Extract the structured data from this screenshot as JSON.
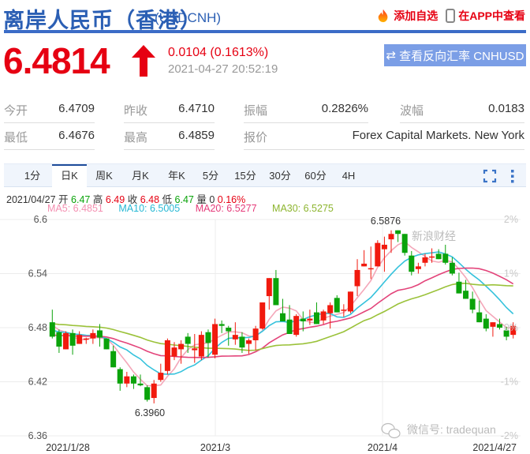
{
  "header": {
    "title": "离岸人民币（香港）",
    "symbol": "(USDCNH)",
    "add_watchlist": "添加自选",
    "view_in_app": "在APP中查看"
  },
  "quote": {
    "last_price": "6.4814",
    "direction": "up",
    "change": "0.0104 (0.1613%)",
    "timestamp": "2021-04-27 20:52:19",
    "reverse_button": "查看反向汇率 CNHUSD",
    "up_color": "#e60012"
  },
  "stats": {
    "row1": [
      {
        "label": "今开",
        "value": "6.4709"
      },
      {
        "label": "昨收",
        "value": "6.4710"
      },
      {
        "label": "振幅",
        "value": "0.2826%"
      },
      {
        "label": "波幅",
        "value": "0.0183"
      }
    ],
    "row2": [
      {
        "label": "最低",
        "value": "6.4676"
      },
      {
        "label": "最高",
        "value": "6.4859"
      },
      {
        "label": "报价",
        "value": "Forex Capital Markets. New York"
      }
    ]
  },
  "tabs": [
    {
      "label": "1分"
    },
    {
      "label": "日K",
      "active": true
    },
    {
      "label": "周K"
    },
    {
      "label": "月K"
    },
    {
      "label": "年K"
    },
    {
      "label": "5分"
    },
    {
      "label": "15分"
    },
    {
      "label": "30分"
    },
    {
      "label": "60分"
    },
    {
      "label": "4H"
    }
  ],
  "toolbar_icons": [
    "fullscreen-icon",
    "more-vertical-icon"
  ],
  "ohlc_info": {
    "date": "2021/04/27",
    "open_label": "开",
    "open": "6.47",
    "high_label": "高",
    "high": "6.49",
    "close_label": "收",
    "close": "6.48",
    "low_label": "低",
    "low": "6.47",
    "volume_label": "量",
    "volume": "0",
    "change_pct": "0.16%"
  },
  "ma_info": [
    {
      "label": "MA5: 6.4851",
      "color": "#f48fb1"
    },
    {
      "label": "MA10: 6.5005",
      "color": "#26c6da"
    },
    {
      "label": "MA20: 6.5277",
      "color": "#e91e63"
    },
    {
      "label": "MA30: 6.5275",
      "color": "#8bc34a"
    }
  ],
  "watermarks": {
    "sina": "新浪财经",
    "wechat": "微信号: tradequan"
  },
  "chart_data": {
    "type": "candlestick",
    "title": "USDCNH 日K",
    "xlabel": "",
    "ylabel": "",
    "ylim": [
      6.36,
      6.6
    ],
    "y_ticks": [
      "6.6",
      "6.54",
      "6.48",
      "6.42",
      "6.36"
    ],
    "y2_ticks": [
      "2%",
      "1%",
      "0%",
      "-1%",
      "-2%"
    ],
    "x_ticks": [
      "2021/1/28",
      "2021/3",
      "2021/4",
      "2021/4/27"
    ],
    "annotations": [
      {
        "text": "6.5876",
        "type": "max"
      },
      {
        "text": "6.3960",
        "type": "min"
      }
    ],
    "grid": true,
    "up_color": "#f11a0e",
    "down_color": "#0aa30a",
    "candles": [
      [
        6.486,
        6.5,
        6.468,
        6.47
      ],
      [
        6.475,
        6.478,
        6.452,
        6.459
      ],
      [
        6.456,
        6.476,
        6.459,
        6.474
      ],
      [
        6.474,
        6.478,
        6.45,
        6.46
      ],
      [
        6.462,
        6.476,
        6.462,
        6.472
      ],
      [
        6.468,
        6.469,
        6.462,
        6.468
      ],
      [
        6.468,
        6.478,
        6.462,
        6.474
      ],
      [
        6.477,
        6.484,
        6.459,
        6.469
      ],
      [
        6.468,
        6.468,
        6.458,
        6.456
      ],
      [
        6.454,
        6.46,
        6.436,
        6.436
      ],
      [
        6.434,
        6.436,
        6.41,
        6.418
      ],
      [
        6.418,
        6.431,
        6.414,
        6.426
      ],
      [
        6.426,
        6.428,
        6.412,
        6.418
      ],
      [
        6.418,
        6.428,
        6.415,
        6.416
      ],
      [
        6.414,
        6.416,
        6.398,
        6.4
      ],
      [
        6.402,
        6.422,
        6.396,
        6.418
      ],
      [
        6.422,
        6.44,
        6.42,
        6.43
      ],
      [
        6.432,
        6.468,
        6.428,
        6.466
      ],
      [
        6.448,
        6.464,
        6.444,
        6.458
      ],
      [
        6.456,
        6.466,
        6.44,
        6.462
      ],
      [
        6.47,
        6.474,
        6.452,
        6.462
      ],
      [
        6.455,
        6.473,
        6.441,
        6.457
      ],
      [
        6.448,
        6.476,
        6.444,
        6.472
      ],
      [
        6.475,
        6.478,
        6.447,
        6.463
      ],
      [
        6.45,
        6.49,
        6.446,
        6.484
      ],
      [
        6.484,
        6.488,
        6.474,
        6.482
      ],
      [
        6.48,
        6.482,
        6.46,
        6.476
      ],
      [
        6.467,
        6.486,
        6.461,
        6.472
      ],
      [
        6.47,
        6.475,
        6.452,
        6.458
      ],
      [
        6.462,
        6.468,
        6.451,
        6.466
      ],
      [
        6.466,
        6.482,
        6.455,
        6.479
      ],
      [
        6.479,
        6.501,
        6.478,
        6.508
      ],
      [
        6.515,
        6.535,
        6.5,
        6.535
      ],
      [
        6.535,
        6.544,
        6.506,
        6.505
      ],
      [
        6.496,
        6.512,
        6.488,
        6.487
      ],
      [
        6.489,
        6.505,
        6.482,
        6.473
      ],
      [
        6.472,
        6.495,
        6.47,
        6.493
      ],
      [
        6.49,
        6.498,
        6.476,
        6.487
      ],
      [
        6.488,
        6.5,
        6.483,
        6.49
      ],
      [
        6.497,
        6.508,
        6.484,
        6.484
      ],
      [
        6.488,
        6.5,
        6.484,
        6.498
      ],
      [
        6.496,
        6.508,
        6.479,
        6.505
      ],
      [
        6.513,
        6.516,
        6.498,
        6.497
      ],
      [
        6.499,
        6.506,
        6.492,
        6.5
      ],
      [
        6.498,
        6.52,
        6.496,
        6.52
      ],
      [
        6.526,
        6.556,
        6.515,
        6.544
      ],
      [
        6.548,
        6.566,
        6.549,
        6.551
      ],
      [
        6.546,
        6.57,
        6.534,
        6.546
      ],
      [
        6.548,
        6.577,
        6.551,
        6.574
      ],
      [
        6.567,
        6.581,
        6.542,
        6.572
      ],
      [
        6.578,
        6.588,
        6.563,
        6.584
      ],
      [
        6.588,
        6.584,
        6.575,
        6.584
      ],
      [
        6.584,
        6.583,
        6.56,
        6.563
      ],
      [
        6.56,
        6.565,
        6.538,
        6.542
      ],
      [
        6.545,
        6.552,
        6.54,
        6.548
      ],
      [
        6.552,
        6.562,
        6.548,
        6.558
      ],
      [
        6.558,
        6.568,
        6.552,
        6.559
      ],
      [
        6.562,
        6.567,
        6.556,
        6.556
      ],
      [
        6.562,
        6.572,
        6.55,
        6.552
      ],
      [
        6.552,
        6.558,
        6.538,
        6.54
      ],
      [
        6.531,
        6.541,
        6.518,
        6.518
      ],
      [
        6.521,
        6.533,
        6.516,
        6.512
      ],
      [
        6.512,
        6.52,
        6.496,
        6.5
      ],
      [
        6.497,
        6.51,
        6.486,
        6.486
      ],
      [
        6.49,
        6.495,
        6.476,
        6.479
      ],
      [
        6.481,
        6.485,
        6.47,
        6.486
      ],
      [
        6.484,
        6.49,
        6.478,
        6.48
      ],
      [
        6.477,
        6.481,
        6.466,
        6.47
      ],
      [
        6.472,
        6.486,
        6.468,
        6.482
      ]
    ],
    "ma_series": [
      {
        "name": "MA5",
        "color": "#f4a7b9",
        "last": 6.4851
      },
      {
        "name": "MA10",
        "color": "#35c2dc",
        "last": 6.5005
      },
      {
        "name": "MA20",
        "color": "#e3447a",
        "last": 6.5277
      },
      {
        "name": "MA30",
        "color": "#9bc23a",
        "last": 6.5275
      }
    ]
  }
}
